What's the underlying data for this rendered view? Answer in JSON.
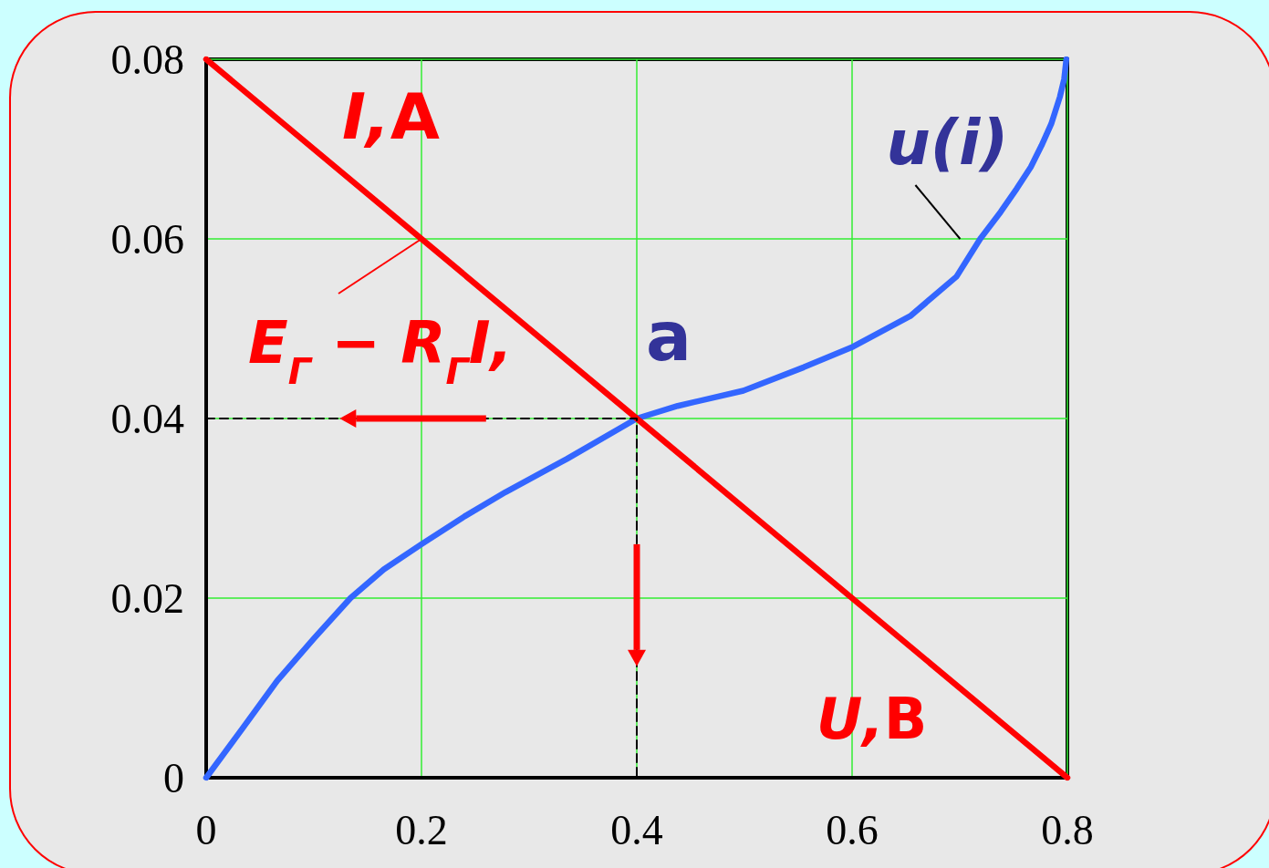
{
  "chart_data": {
    "type": "line",
    "xlabel": "U,В",
    "ylabel": "I,A",
    "xlim": [
      0,
      0.8
    ],
    "ylim": [
      0,
      0.08
    ],
    "xticks": [
      0,
      0.2,
      0.4,
      0.6,
      0.8
    ],
    "yticks": [
      0,
      0.02,
      0.04,
      0.06,
      0.08
    ],
    "grid": true,
    "marker": "none",
    "series": [
      {
        "color": "#3366ff",
        "x": [
          0,
          0.035,
          0.066,
          0.1,
          0.134,
          0.165,
          0.2,
          0.24,
          0.278,
          0.335,
          0.4,
          0.438,
          0.499,
          0.555,
          0.601,
          0.654,
          0.697,
          0.719,
          0.738,
          0.753,
          0.766,
          0.776,
          0.785,
          0.793,
          0.797,
          0.799
        ],
        "values": [
          0,
          0.0057,
          0.0108,
          0.0155,
          0.02,
          0.0232,
          0.026,
          0.0291,
          0.0318,
          0.0355,
          0.04,
          0.0414,
          0.0431,
          0.0457,
          0.048,
          0.0514,
          0.0558,
          0.06,
          0.063,
          0.0656,
          0.068,
          0.0704,
          0.0728,
          0.0758,
          0.0778,
          0.08
        ]
      },
      {
        "color": "#ff0000",
        "x": [
          0,
          0.8
        ],
        "values": [
          0.08,
          0
        ]
      },
      {
        "color": "#000000",
        "x": [
          0,
          0.4,
          0.4
        ],
        "values": [
          0.04,
          0.04,
          0
        ],
        "line_style": "dashed"
      }
    ],
    "annotations": [
      {
        "text": "u(i)",
        "x": 0.719,
        "y": 0.06
      },
      {
        "text": "E$_{Г}$ − R$_{Г}$I,",
        "x": 0.2,
        "y": 0.06
      },
      {
        "text": "a",
        "x": 0.4,
        "y": 0.04
      }
    ]
  }
}
